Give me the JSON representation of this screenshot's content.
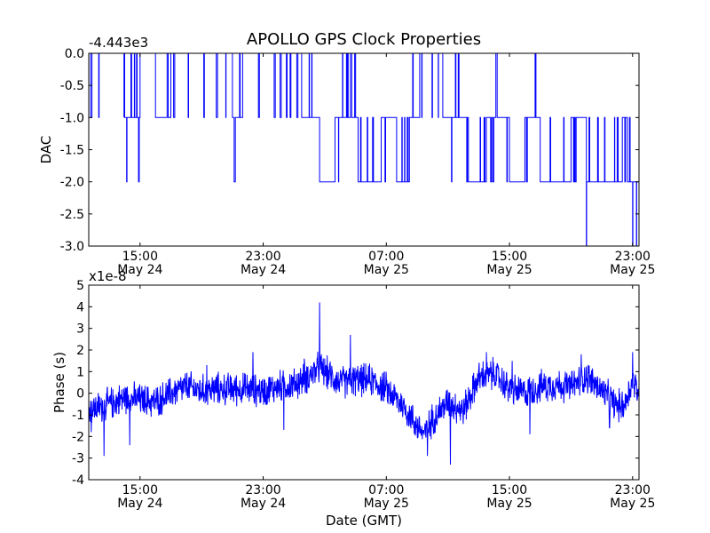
{
  "title": "APOLLO GPS Clock Properties",
  "colors": {
    "series": "#0000ff",
    "axis": "#000000",
    "background": "#ffffff"
  },
  "chart_data": [
    {
      "type": "line",
      "title": "APOLLO GPS Clock Properties",
      "ylabel": "DAC",
      "xlabel": "",
      "offset_label": "-4.443e3",
      "ylim": [
        -3.0,
        0.0
      ],
      "xlim": [
        "2024-05-24 11:40",
        "2024-05-25 23:25"
      ],
      "y_ticks": [
        0.0,
        -0.5,
        -1.0,
        -1.5,
        -2.0,
        -2.5,
        -3.0
      ],
      "y_tick_labels": [
        "0.0",
        "-0.5",
        "-1.0",
        "-1.5",
        "-2.0",
        "-2.5",
        "-3.0"
      ],
      "x_ticks": [
        {
          "time": "15:00",
          "date": "May 24"
        },
        {
          "time": "23:00",
          "date": "May 24"
        },
        {
          "time": "07:00",
          "date": "May 25"
        },
        {
          "time": "15:00",
          "date": "May 25"
        },
        {
          "time": "23:00",
          "date": "May 25"
        }
      ],
      "grid": false,
      "series": [
        {
          "levels": [
            [
              "2024-05-24 11:40",
              0.0
            ],
            [
              "2024-05-24 14:00",
              -1.0
            ],
            [
              "2024-05-24 15:00",
              0.0
            ],
            [
              "2024-05-24 16:00",
              -1.0
            ],
            [
              "2024-05-24 17:00",
              0.0
            ],
            [
              "2024-05-24 21:00",
              -1.0
            ],
            [
              "2024-05-24 21:40",
              0.0
            ],
            [
              "2024-05-25 01:30",
              -1.0
            ],
            [
              "2024-05-25 02:40",
              -2.0
            ],
            [
              "2024-05-25 03:40",
              -1.0
            ],
            [
              "2024-05-25 05:10",
              -2.0
            ],
            [
              "2024-05-25 06:40",
              -1.0
            ],
            [
              "2024-05-25 07:40",
              -2.0
            ],
            [
              "2024-05-25 08:30",
              -1.0
            ],
            [
              "2024-05-25 09:10",
              0.0
            ],
            [
              "2024-05-25 10:40",
              -1.0
            ],
            [
              "2024-05-25 12:20",
              -2.0
            ],
            [
              "2024-05-25 13:30",
              -1.0
            ],
            [
              "2024-05-25 15:00",
              -2.0
            ],
            [
              "2024-05-25 16:00",
              -1.0
            ],
            [
              "2024-05-25 17:00",
              -2.0
            ],
            [
              "2024-05-25 19:00",
              -1.0
            ],
            [
              "2024-05-25 20:00",
              -2.0
            ],
            [
              "2024-05-25 22:20",
              -1.0
            ],
            [
              "2024-05-25 22:40",
              -2.0
            ],
            [
              "2024-05-25 23:25",
              -2.0
            ]
          ],
          "spikes": [
            [
              "2024-05-25 20:00",
              -3.0
            ],
            [
              "2024-05-25 23:00",
              -3.0
            ],
            [
              "2024-05-25 23:15",
              -3.0
            ]
          ]
        }
      ]
    },
    {
      "type": "line",
      "title": "",
      "ylabel": "Phase (s)",
      "xlabel": "Date (GMT)",
      "offset_label": "x1e-8",
      "ylim": [
        -4,
        5
      ],
      "xlim": [
        "2024-05-24 11:40",
        "2024-05-25 23:25"
      ],
      "y_ticks": [
        5,
        4,
        3,
        2,
        1,
        0,
        -1,
        -2,
        -3,
        -4
      ],
      "y_tick_labels": [
        "5",
        "4",
        "3",
        "2",
        "1",
        "0",
        "-1",
        "-2",
        "-3",
        "-4"
      ],
      "x_ticks": [
        {
          "time": "15:00",
          "date": "May 24"
        },
        {
          "time": "23:00",
          "date": "May 24"
        },
        {
          "time": "07:00",
          "date": "May 25"
        },
        {
          "time": "15:00",
          "date": "May 25"
        },
        {
          "time": "23:00",
          "date": "May 25"
        }
      ],
      "grid": false,
      "series": [
        {
          "trend": [
            [
              "2024-05-24 11:40",
              -0.8
            ],
            [
              "2024-05-24 13:00",
              -0.5
            ],
            [
              "2024-05-24 14:00",
              -0.2
            ],
            [
              "2024-05-24 15:00",
              -0.3
            ],
            [
              "2024-05-24 16:00",
              -0.4
            ],
            [
              "2024-05-24 17:00",
              0.0
            ],
            [
              "2024-05-24 18:00",
              0.3
            ],
            [
              "2024-05-24 19:00",
              0.1
            ],
            [
              "2024-05-24 20:00",
              0.2
            ],
            [
              "2024-05-24 21:00",
              0.2
            ],
            [
              "2024-05-24 22:00",
              0.2
            ],
            [
              "2024-05-24 23:00",
              0.1
            ],
            [
              "2024-05-25 00:00",
              0.3
            ],
            [
              "2024-05-25 01:00",
              0.4
            ],
            [
              "2024-05-25 02:00",
              0.8
            ],
            [
              "2024-05-25 02:40",
              1.2
            ],
            [
              "2024-05-25 03:00",
              1.0
            ],
            [
              "2024-05-25 04:00",
              0.5
            ],
            [
              "2024-05-25 05:00",
              0.6
            ],
            [
              "2024-05-25 06:00",
              0.6
            ],
            [
              "2024-05-25 07:00",
              0.2
            ],
            [
              "2024-05-25 08:00",
              -0.5
            ],
            [
              "2024-05-25 09:00",
              -1.5
            ],
            [
              "2024-05-25 09:30",
              -1.9
            ],
            [
              "2024-05-25 10:00",
              -1.2
            ],
            [
              "2024-05-25 11:00",
              -0.4
            ],
            [
              "2024-05-25 12:00",
              -0.8
            ],
            [
              "2024-05-25 13:00",
              0.7
            ],
            [
              "2024-05-25 14:00",
              0.9
            ],
            [
              "2024-05-25 15:00",
              0.2
            ],
            [
              "2024-05-25 16:00",
              0.0
            ],
            [
              "2024-05-25 17:00",
              0.3
            ],
            [
              "2024-05-25 18:00",
              0.4
            ],
            [
              "2024-05-25 19:00",
              0.3
            ],
            [
              "2024-05-25 20:00",
              0.8
            ],
            [
              "2024-05-25 21:00",
              0.1
            ],
            [
              "2024-05-25 22:00",
              -0.6
            ],
            [
              "2024-05-25 22:30",
              -0.5
            ],
            [
              "2024-05-25 23:00",
              0.6
            ],
            [
              "2024-05-25 23:25",
              0.0
            ]
          ],
          "noise_amplitude": 0.6,
          "spikes": [
            [
              "2024-05-24 11:50",
              -1.8
            ],
            [
              "2024-05-24 12:40",
              -2.9
            ],
            [
              "2024-05-24 14:20",
              -2.4
            ],
            [
              "2024-05-24 19:20",
              1.3
            ],
            [
              "2024-05-24 22:20",
              1.9
            ],
            [
              "2024-05-25 00:20",
              -1.7
            ],
            [
              "2024-05-25 01:40",
              1.6
            ],
            [
              "2024-05-25 02:40",
              4.2
            ],
            [
              "2024-05-25 04:40",
              2.7
            ],
            [
              "2024-05-25 09:40",
              -2.9
            ],
            [
              "2024-05-25 11:10",
              -3.3
            ],
            [
              "2024-05-25 13:30",
              1.9
            ],
            [
              "2024-05-25 15:10",
              1.5
            ],
            [
              "2024-05-25 16:20",
              -1.9
            ],
            [
              "2024-05-25 19:40",
              1.8
            ],
            [
              "2024-05-25 21:30",
              -1.6
            ],
            [
              "2024-05-25 23:00",
              1.9
            ]
          ]
        }
      ]
    }
  ]
}
